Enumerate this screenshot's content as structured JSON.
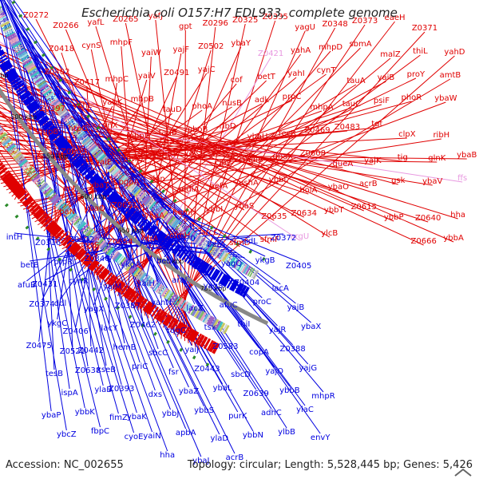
{
  "title": "Escherichia coli O157:H7 EDL933, complete genome",
  "footer": {
    "accession": "Accession: NC_002655",
    "topology": "Topology: circular; Length: 5,528,445 bp; Genes: 5,426"
  },
  "colors": {
    "forward": "#e00000",
    "reverse": "#0000e0",
    "rna": "#e898e0",
    "backbone": "#888888",
    "tick_label": "#111111",
    "cds_dash": "#2a8a2a"
  },
  "ticks": [
    "300 kbp",
    "350 kbp",
    "400 kbp",
    "450 kbp",
    "500 kbp",
    "550 kbp",
    "600 kbp",
    "650 kbp",
    "700 kbp",
    "750 kbp"
  ],
  "forward_labels": [
    "Z0272",
    "Z0266",
    "yafL",
    "Z0265",
    "yafJ",
    "gpt",
    "Z0296",
    "Z0325",
    "Z0335",
    "yagU",
    "Z0348",
    "Z0373",
    "eaeH",
    "Z0371",
    "yahD",
    "Z0418",
    "cynS",
    "mhpF",
    "yaiW",
    "yajF",
    "Z0502",
    "ybaY",
    "Z0421",
    "yahA",
    "mhpD",
    "sbmA",
    "malZ",
    "thiL",
    "amtB",
    "Z0402",
    "Z0417",
    "mhpC",
    "yaiV",
    "Z0491",
    "yajC",
    "cof",
    "betT",
    "yahI",
    "cynT",
    "tauA",
    "yaiB",
    "proY",
    "ybaW",
    "Z0397",
    "yahL",
    "yahK",
    "mhpB",
    "tauD",
    "phoA",
    "nusB",
    "adk",
    "prpC",
    "mhpA",
    "tauC",
    "psiF",
    "phoR",
    "ribH",
    "hupB",
    "htpG",
    "cynX",
    "mhpE",
    "tauB",
    "phoB",
    "ribD",
    "ybaU",
    "recR",
    "Z0469",
    "Z0483",
    "tgt",
    "clpX",
    "glnK",
    "ybaB",
    "Z0609",
    "yaiE",
    "brnQ",
    "nrdR",
    "yajQ",
    "clpP",
    "mdlB",
    "dnaX",
    "Z0608",
    "queA",
    "yajK",
    "tig",
    "ybaV",
    "ffs",
    "apt",
    "ybaT",
    "pgpA",
    "lon",
    "mdlA",
    "aefA",
    "ushA",
    "ybbL",
    "bolA",
    "ybaO",
    "acrB",
    "gsk",
    "Z0640",
    "hha",
    "ybaN",
    "ybaQ",
    "Z0651",
    "ybaA",
    "hemH",
    "ybbI",
    "ybaS",
    "Z0635",
    "Z0634",
    "ybbT",
    "Z0615",
    "ybbP",
    "Z0666",
    "ybbA",
    "ybbQ",
    "cysS",
    "Z0654",
    "fdrA",
    "sfmH",
    "arcC",
    "sfmD",
    "sfmF",
    "argU",
    "ylcB"
  ],
  "reverse_labels": [
    "intH",
    "Z0316",
    "Z0332",
    "psuL",
    "yagV",
    "Z0370",
    "betA",
    "sidL",
    "Z0372",
    "betB",
    "prpR",
    "Z0346",
    "ykgA",
    "betI",
    "lacI",
    "yagQ",
    "ykgB",
    "Z0405",
    "Z0431",
    "cynR",
    "yaiM",
    "yaiH",
    "araJ",
    "yagS",
    "Z0404",
    "lacA",
    "afuB",
    "ddl",
    "yagX",
    "Z0387",
    "yahN",
    "lacZ",
    "afuC",
    "proC",
    "yajB",
    "Z0374",
    "Z0406",
    "lacY",
    "Z0462",
    "rdgC",
    "tsx",
    "thiI",
    "yajR",
    "ybaX",
    "ykgC",
    "Z0442",
    "hemB",
    "sbcC",
    "yaiJ",
    "Z0583",
    "copA",
    "Z0388",
    "Z0475",
    "Z0521",
    "xseB",
    "priC",
    "fsr",
    "Z0443",
    "sbcD",
    "yajO",
    "yajG",
    "tesB",
    "Z0638",
    "Z0393",
    "dxs",
    "ybaZ",
    "ybaL",
    "Z0639",
    "ybbB",
    "mhpR",
    "ispA",
    "ylaB",
    "ybaK",
    "ybbJ",
    "ybbS",
    "purK",
    "adhC",
    "ylaC",
    "ybaP",
    "ybbK",
    "fimZ",
    "yaiN",
    "apbA",
    "ylaD",
    "ybbN",
    "ylbB",
    "envY",
    "ybcZ",
    "fbpC",
    "cyoE",
    "hha",
    "ybaJ",
    "acrB"
  ]
}
